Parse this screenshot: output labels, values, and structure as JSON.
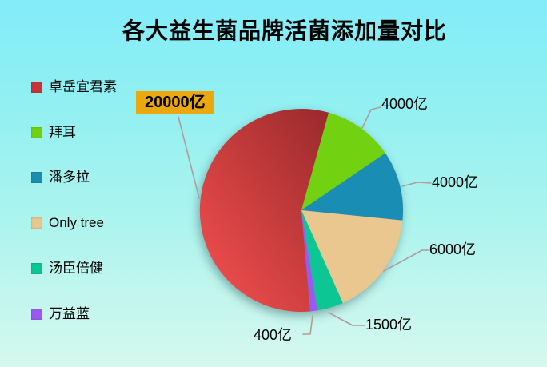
{
  "title": "各大益生菌品牌活菌添加量对比",
  "chart_data": {
    "type": "pie",
    "title": "各大益生菌品牌活菌添加量对比",
    "unit": "亿",
    "categories": [
      "卓岳宜君素",
      "拜耳",
      "潘多拉",
      "Only tree",
      "汤臣倍健",
      "万益蓝"
    ],
    "values": [
      20000,
      4000,
      4000,
      6000,
      1500,
      400
    ],
    "labels": [
      "20000亿",
      "4000亿",
      "4000亿",
      "6000亿",
      "1500亿",
      "400亿"
    ],
    "slice_colors": [
      "#ca3338",
      "#72d211",
      "#1a8db4",
      "#e9c78e",
      "#0cc793",
      "#9b59f3"
    ],
    "red_slice_gradient": [
      "#e84a4a",
      "#8e2527"
    ],
    "rotation_deg": 175,
    "legend_position": "left",
    "highlight_label_bg": "#eaa80e",
    "leader_line_color": "#b09c9a",
    "background_gradient": [
      "#82ecf8",
      "#d6f8ee"
    ]
  }
}
